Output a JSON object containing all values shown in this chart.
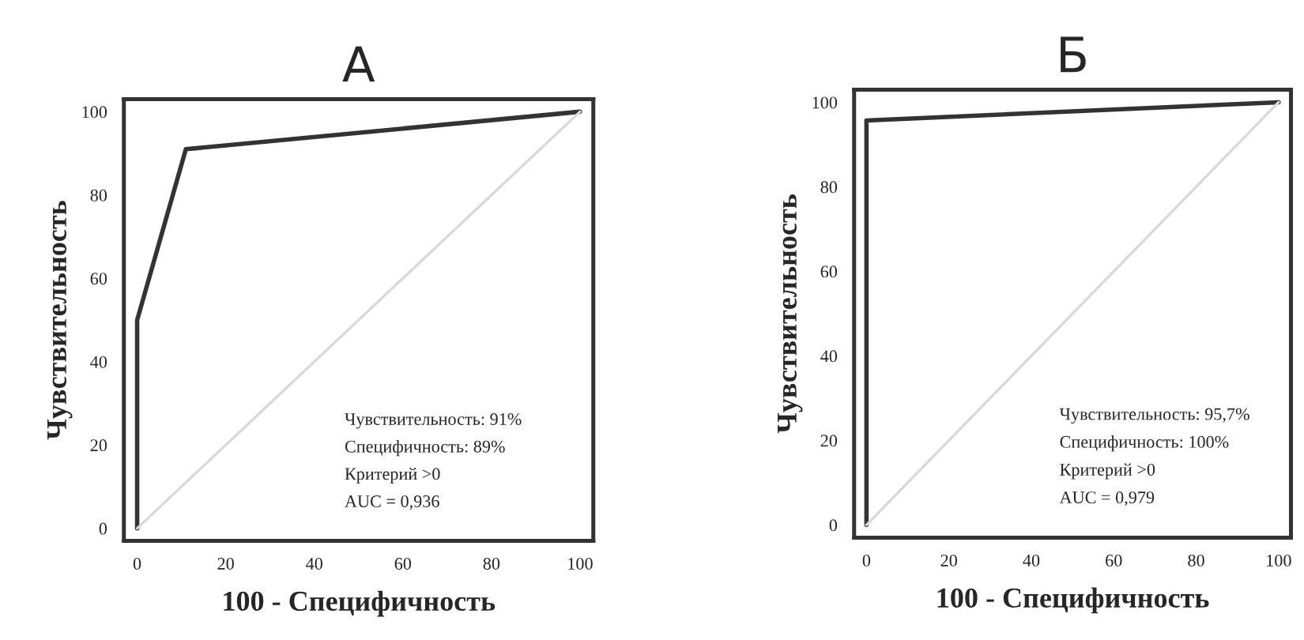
{
  "chart_data": [
    {
      "type": "line",
      "title": "А",
      "xlabel": "100 - Специфичность",
      "ylabel": "Чувствительность",
      "series": [
        {
          "x": [
            0,
            0,
            11,
            100
          ],
          "values": [
            0,
            50,
            91,
            100
          ],
          "color": "#333333"
        },
        {
          "x": [
            0,
            100
          ],
          "values": [
            0,
            100
          ],
          "color": "#d9d9d9"
        }
      ],
      "xlim": [
        -3,
        103
      ],
      "ylim": [
        -3,
        103
      ],
      "xticks": [
        0,
        20,
        40,
        60,
        80,
        100
      ],
      "yticks": [
        0,
        20,
        40,
        60,
        80,
        100
      ],
      "grid": false,
      "marker": "none",
      "line_style": "solid",
      "annotations": [
        "Чувствительность: 91%",
        "Специфичность: 89%",
        "Критерий >0",
        "AUC = 0,936"
      ]
    },
    {
      "type": "line",
      "title": "Б",
      "xlabel": "100 - Специфичность",
      "ylabel": "Чувствительность",
      "series": [
        {
          "x": [
            0,
            0,
            100
          ],
          "values": [
            0,
            95.7,
            100
          ],
          "color": "#333333"
        },
        {
          "x": [
            0,
            100
          ],
          "values": [
            0,
            100
          ],
          "color": "#d9d9d9"
        }
      ],
      "xlim": [
        -3,
        103
      ],
      "ylim": [
        -3,
        103
      ],
      "xticks": [
        0,
        20,
        40,
        60,
        80,
        100
      ],
      "yticks": [
        0,
        20,
        40,
        60,
        80,
        100
      ],
      "grid": false,
      "marker": "none",
      "line_style": "solid",
      "annotations": [
        "Чувствительность: 95,7%",
        "Специфичность: 100%",
        "Критерий >0",
        "AUC = 0,979"
      ]
    }
  ]
}
